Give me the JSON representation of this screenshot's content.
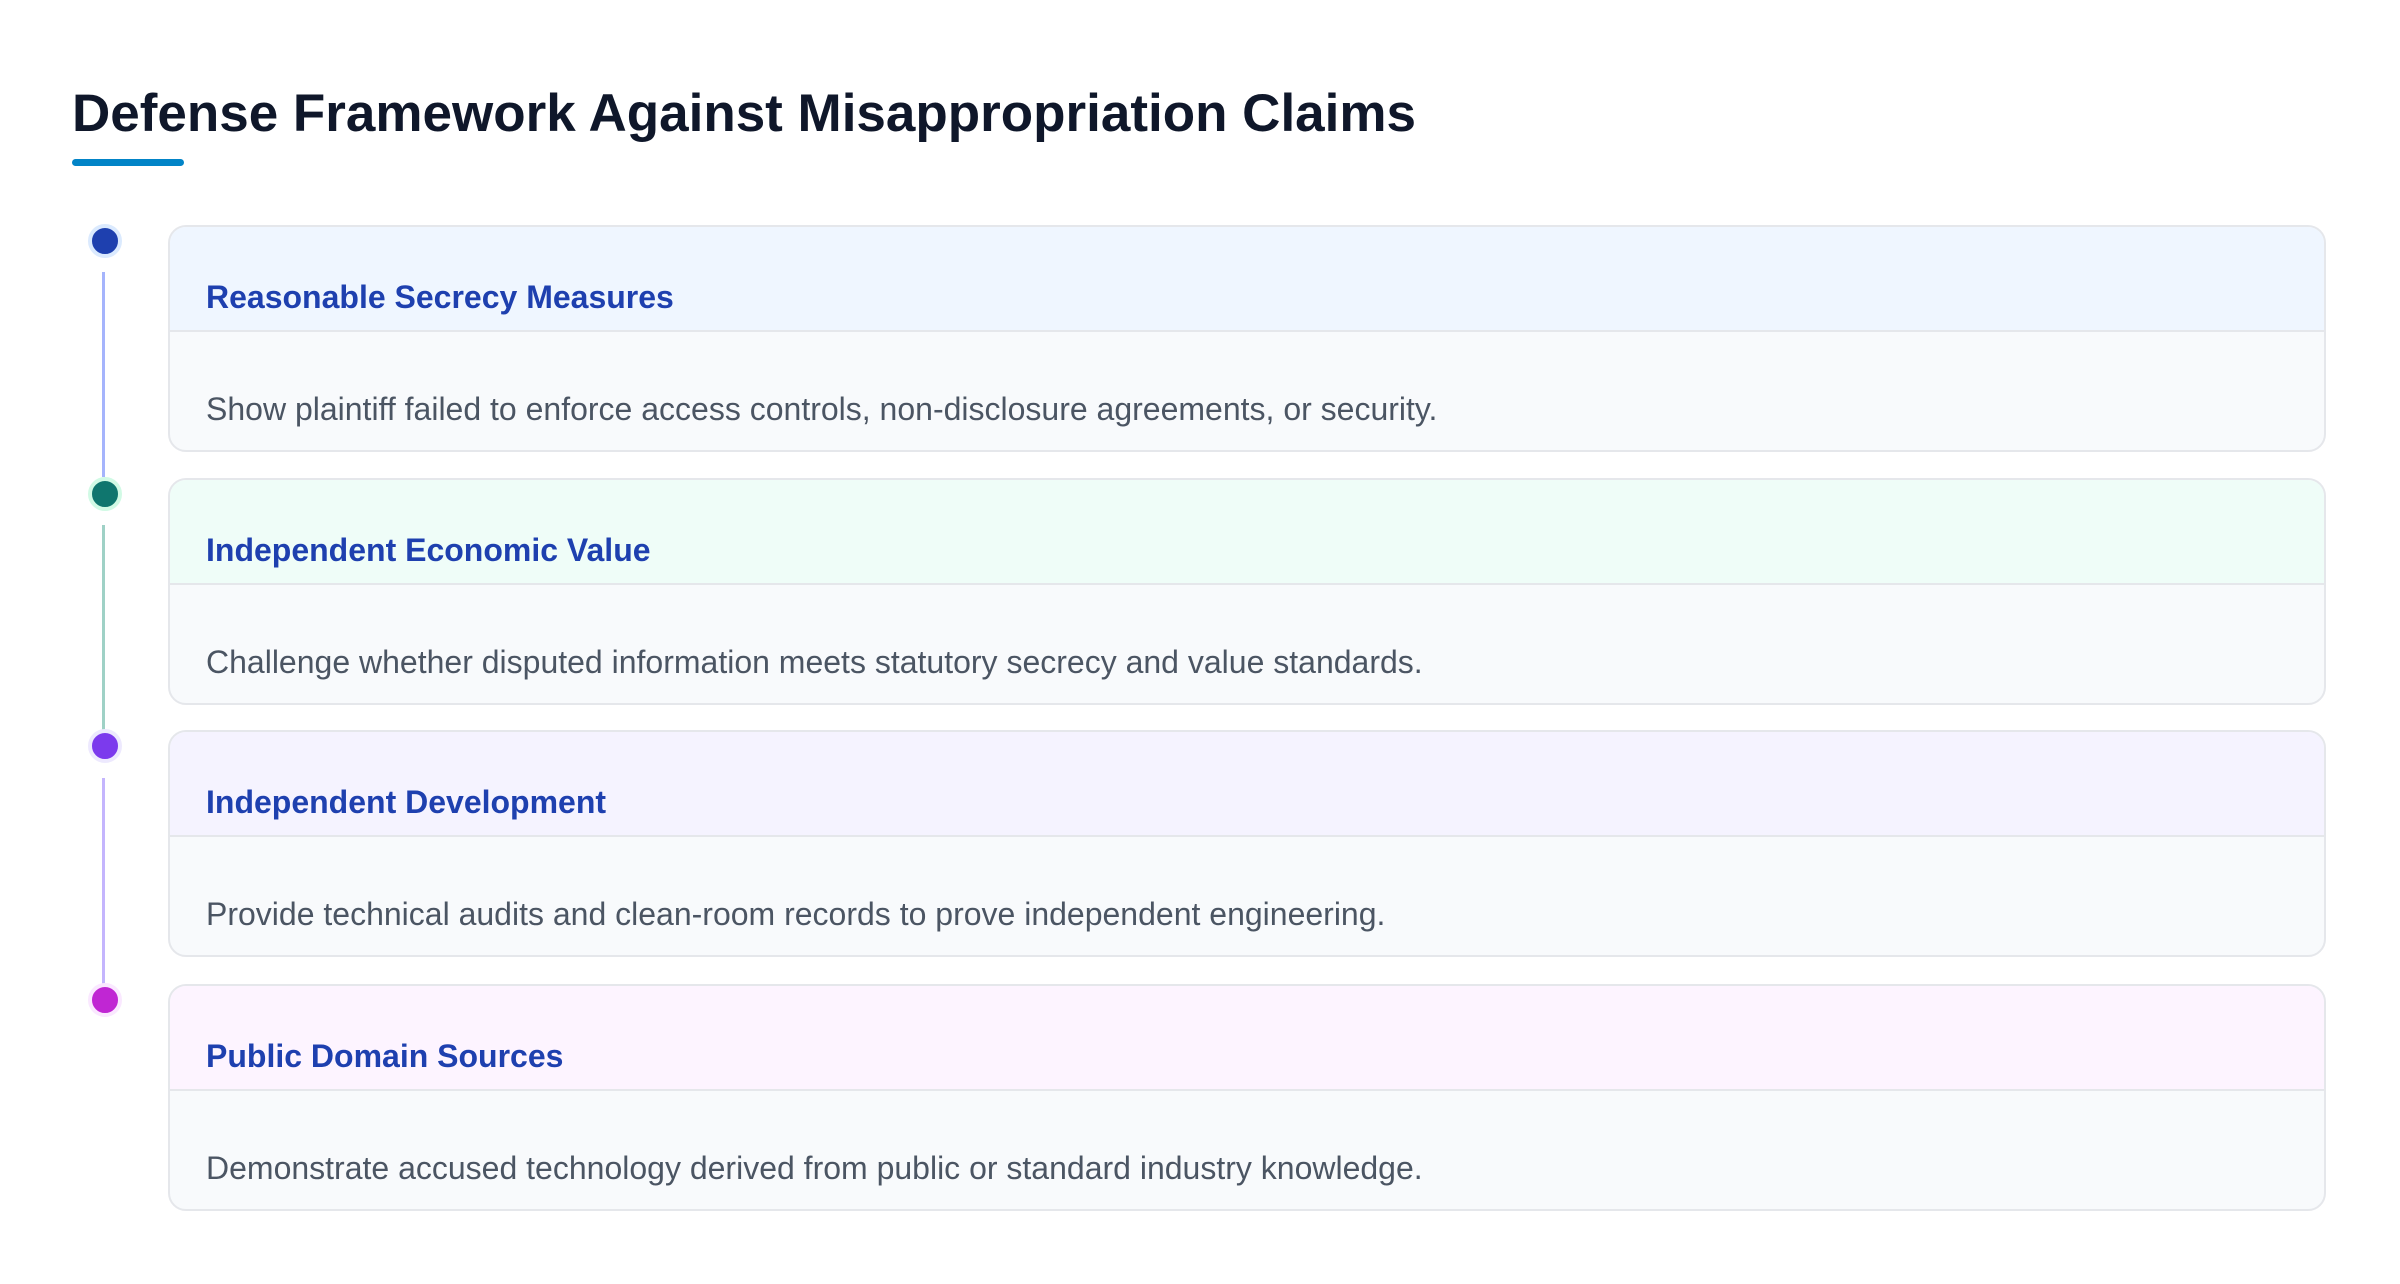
{
  "header": {
    "title": "Defense Framework Against Misappropriation Claims"
  },
  "items": [
    {
      "title": "Reasonable Secrecy Measures",
      "description": "Show plaintiff failed to enforce access controls, non-disclosure agreements, or security."
    },
    {
      "title": "Independent Economic Value",
      "description": "Challenge whether disputed information meets statutory secrecy and value standards."
    },
    {
      "title": "Independent Development",
      "description": "Provide technical audits and clean-room records to prove independent engineering."
    },
    {
      "title": "Public Domain Sources",
      "description": "Demonstrate accused technology derived from public or standard industry knowledge."
    }
  ]
}
